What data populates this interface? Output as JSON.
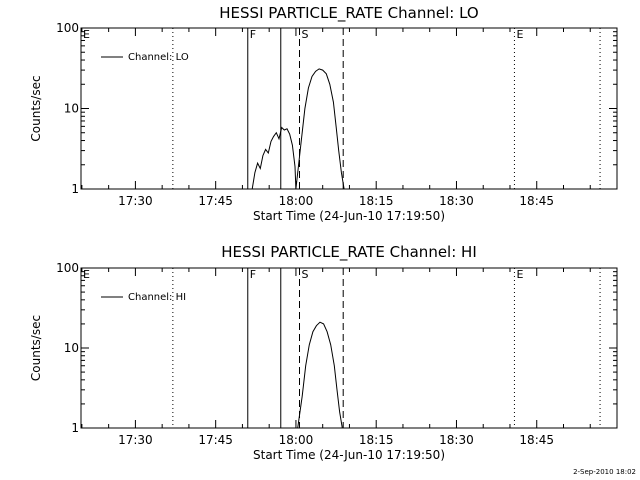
{
  "chart_data": [
    {
      "type": "line",
      "title": "HESSI PARTICLE_RATE Channel: LO",
      "xlabel": "Start Time (24-Jun-10 17:19:50)",
      "ylabel": "Counts/sec",
      "y_scale": "log",
      "ylim": [
        1,
        100
      ],
      "y_ticks": [
        "1",
        "10",
        "100"
      ],
      "xlim": [
        "17:19:50",
        "19:00:00"
      ],
      "x_ticks": [
        "17:30",
        "17:45",
        "18:00",
        "18:15",
        "18:30",
        "18:45"
      ],
      "grid": false,
      "legend": {
        "position": "top-left",
        "entries": [
          "Channel: LO"
        ]
      },
      "series": [
        {
          "name": "Channel: LO",
          "x": [
            "17:51:50",
            "17:52:20",
            "17:52:50",
            "17:53:20",
            "17:53:50",
            "17:54:20",
            "17:54:50",
            "17:55:20",
            "17:55:50",
            "17:56:20",
            "17:56:50",
            "17:57:20",
            "17:57:50",
            "17:58:20",
            "17:58:50",
            "17:59:20",
            "17:59:50",
            "18:00:00",
            "18:01:00",
            "18:01:40",
            "18:02:20",
            "18:03:00",
            "18:03:40",
            "18:04:20",
            "18:05:00",
            "18:05:40",
            "18:06:20",
            "18:07:00",
            "18:07:30",
            "18:08:00",
            "18:08:30",
            "18:09:00"
          ],
          "values": [
            1.0,
            1.6,
            2.1,
            1.8,
            2.6,
            3.1,
            2.8,
            3.9,
            4.5,
            5.0,
            4.2,
            5.8,
            5.4,
            5.6,
            4.8,
            3.5,
            1.9,
            1.0,
            4.0,
            10.0,
            18.0,
            25.0,
            29.0,
            31.0,
            30.0,
            27.0,
            20.0,
            12.0,
            6.0,
            3.0,
            1.6,
            1.0
          ]
        }
      ],
      "markers": [
        {
          "label": "E",
          "time": "17:19:50",
          "style": "none"
        },
        {
          "label": "",
          "time": "17:37:00",
          "style": "dotted"
        },
        {
          "label": "F",
          "time": "17:51:00",
          "style": "solid"
        },
        {
          "label": "",
          "time": "17:57:10",
          "style": "solid"
        },
        {
          "label": "S",
          "time": "18:00:40",
          "style": "dashed"
        },
        {
          "label": "",
          "time": "18:08:50",
          "style": "dashed"
        },
        {
          "label": "E",
          "time": "18:40:50",
          "style": "dotted"
        },
        {
          "label": "",
          "time": "18:56:50",
          "style": "dotted"
        }
      ]
    },
    {
      "type": "line",
      "title": "HESSI PARTICLE_RATE Channel: HI",
      "xlabel": "Start Time (24-Jun-10 17:19:50)",
      "ylabel": "Counts/sec",
      "y_scale": "log",
      "ylim": [
        1,
        100
      ],
      "y_ticks": [
        "1",
        "10",
        "100"
      ],
      "xlim": [
        "17:19:50",
        "19:00:00"
      ],
      "x_ticks": [
        "17:30",
        "17:45",
        "18:00",
        "18:15",
        "18:30",
        "18:45"
      ],
      "grid": false,
      "legend": {
        "position": "top-left",
        "entries": [
          "Channel: HI"
        ]
      },
      "series": [
        {
          "name": "Channel: HI",
          "x": [
            "18:00:20",
            "18:01:10",
            "18:01:50",
            "18:02:30",
            "18:03:10",
            "18:03:50",
            "18:04:30",
            "18:05:10",
            "18:05:50",
            "18:06:30",
            "18:07:10",
            "18:07:40",
            "18:08:10",
            "18:08:40"
          ],
          "values": [
            1.0,
            2.5,
            6.0,
            11.0,
            16.0,
            19.0,
            21.0,
            20.0,
            16.0,
            11.0,
            6.0,
            3.0,
            1.6,
            1.0
          ]
        }
      ],
      "markers": [
        {
          "label": "E",
          "time": "17:19:50",
          "style": "none"
        },
        {
          "label": "",
          "time": "17:37:00",
          "style": "dotted"
        },
        {
          "label": "F",
          "time": "17:51:00",
          "style": "solid"
        },
        {
          "label": "",
          "time": "17:57:10",
          "style": "solid"
        },
        {
          "label": "S",
          "time": "18:00:40",
          "style": "dashed"
        },
        {
          "label": "",
          "time": "18:08:50",
          "style": "dashed"
        },
        {
          "label": "E",
          "time": "18:40:50",
          "style": "dotted"
        },
        {
          "label": "",
          "time": "18:56:50",
          "style": "dotted"
        }
      ]
    }
  ],
  "footer": {
    "timestamp": "2-Sep-2010 18:02"
  }
}
